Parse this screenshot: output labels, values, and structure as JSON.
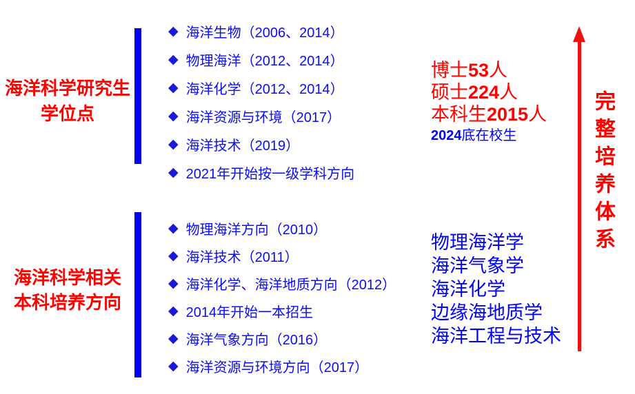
{
  "bullet_icon": "◆",
  "colors": {
    "red": "#ff0000",
    "blue": "#0000ff",
    "bar_blue": "#0000ee",
    "arrow_red": "#ee0f0f"
  },
  "top_section": {
    "title_lines": [
      "海洋科学研究生",
      "学位点"
    ],
    "items": [
      "海洋生物（2006、2014）",
      "物理海洋（2012、2014）",
      "海洋化学（2012、2014）",
      "海洋资源与环境（2017）",
      "海洋技术（2019）",
      "2021年开始按一级学科方向"
    ]
  },
  "bottom_section": {
    "title_lines": [
      "海洋科学相关",
      "本科培养方向"
    ],
    "items": [
      "物理海洋方向（2010）",
      "海洋技术（2011）",
      "海洋化学、海洋地质方向（2012）",
      "2014年开始一本招生",
      "海洋气象方向（2016）",
      "海洋资源与环境方向（2017）"
    ]
  },
  "stats": {
    "lines": [
      {
        "prefix": "博士",
        "number": "53",
        "suffix": "人"
      },
      {
        "prefix": "硕士",
        "number": "224",
        "suffix": "人"
      },
      {
        "prefix": "本科生",
        "number": "2015",
        "suffix": "人"
      }
    ],
    "note": {
      "number": "2024",
      "text": "底在校生"
    }
  },
  "majors": [
    "物理海洋学",
    "海洋气象学",
    "海洋化学",
    "边缘海地质学",
    "海洋工程与技术"
  ],
  "arrow_label": "完整培养体系"
}
